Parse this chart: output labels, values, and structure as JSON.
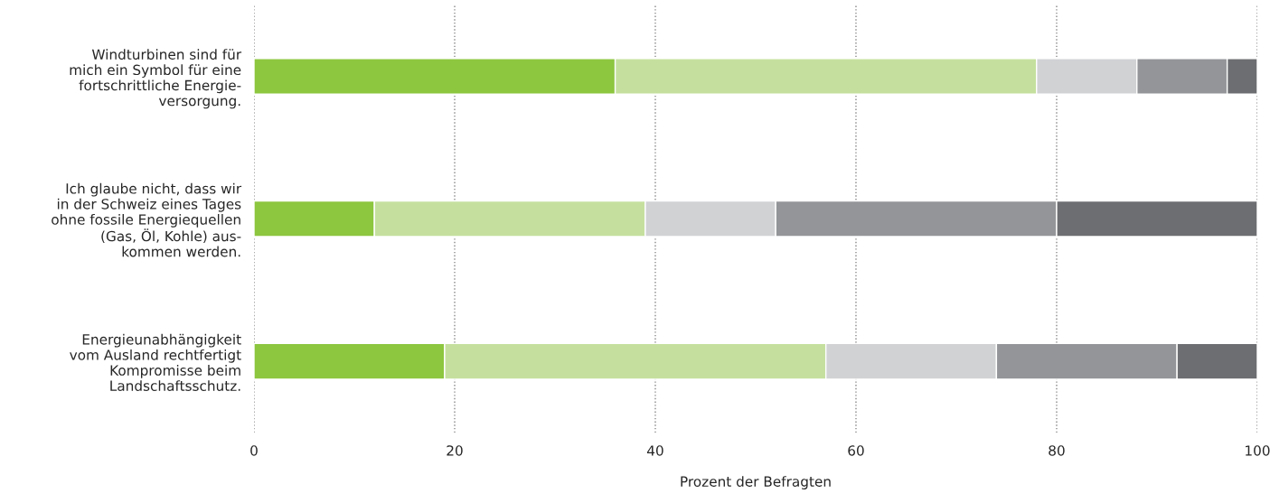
{
  "chart_data": {
    "type": "bar",
    "orientation": "horizontal",
    "stacked": true,
    "categories": [
      "Windturbinen sind für\nmich ein Symbol für eine\nfortschrittliche Energie-\nversorgung.",
      "Ich glaube nicht, dass wir\nin der Schweiz eines Tages\nohne fossile Energiequellen\n(Gas, Öl, Kohle) aus-\nkommen werden.",
      "Energieunabhängigkeit\nvom Ausland rechtfertigt\nKompromisse beim\nLandschaftsschutz."
    ],
    "series": [
      {
        "color": "#8dc63f",
        "values": [
          36,
          12,
          19
        ]
      },
      {
        "color": "#c5e09e",
        "values": [
          42,
          27,
          38
        ]
      },
      {
        "color": "#d1d2d4",
        "values": [
          10,
          13,
          17
        ]
      },
      {
        "color": "#939598",
        "values": [
          9,
          28,
          18
        ]
      },
      {
        "color": "#6d6e71",
        "values": [
          3,
          20,
          8
        ]
      }
    ],
    "xlabel": "Prozent der Befragten",
    "xlim": [
      0,
      100
    ],
    "xticks": [
      0,
      20,
      40,
      60,
      80,
      100
    ],
    "grid": "x"
  }
}
